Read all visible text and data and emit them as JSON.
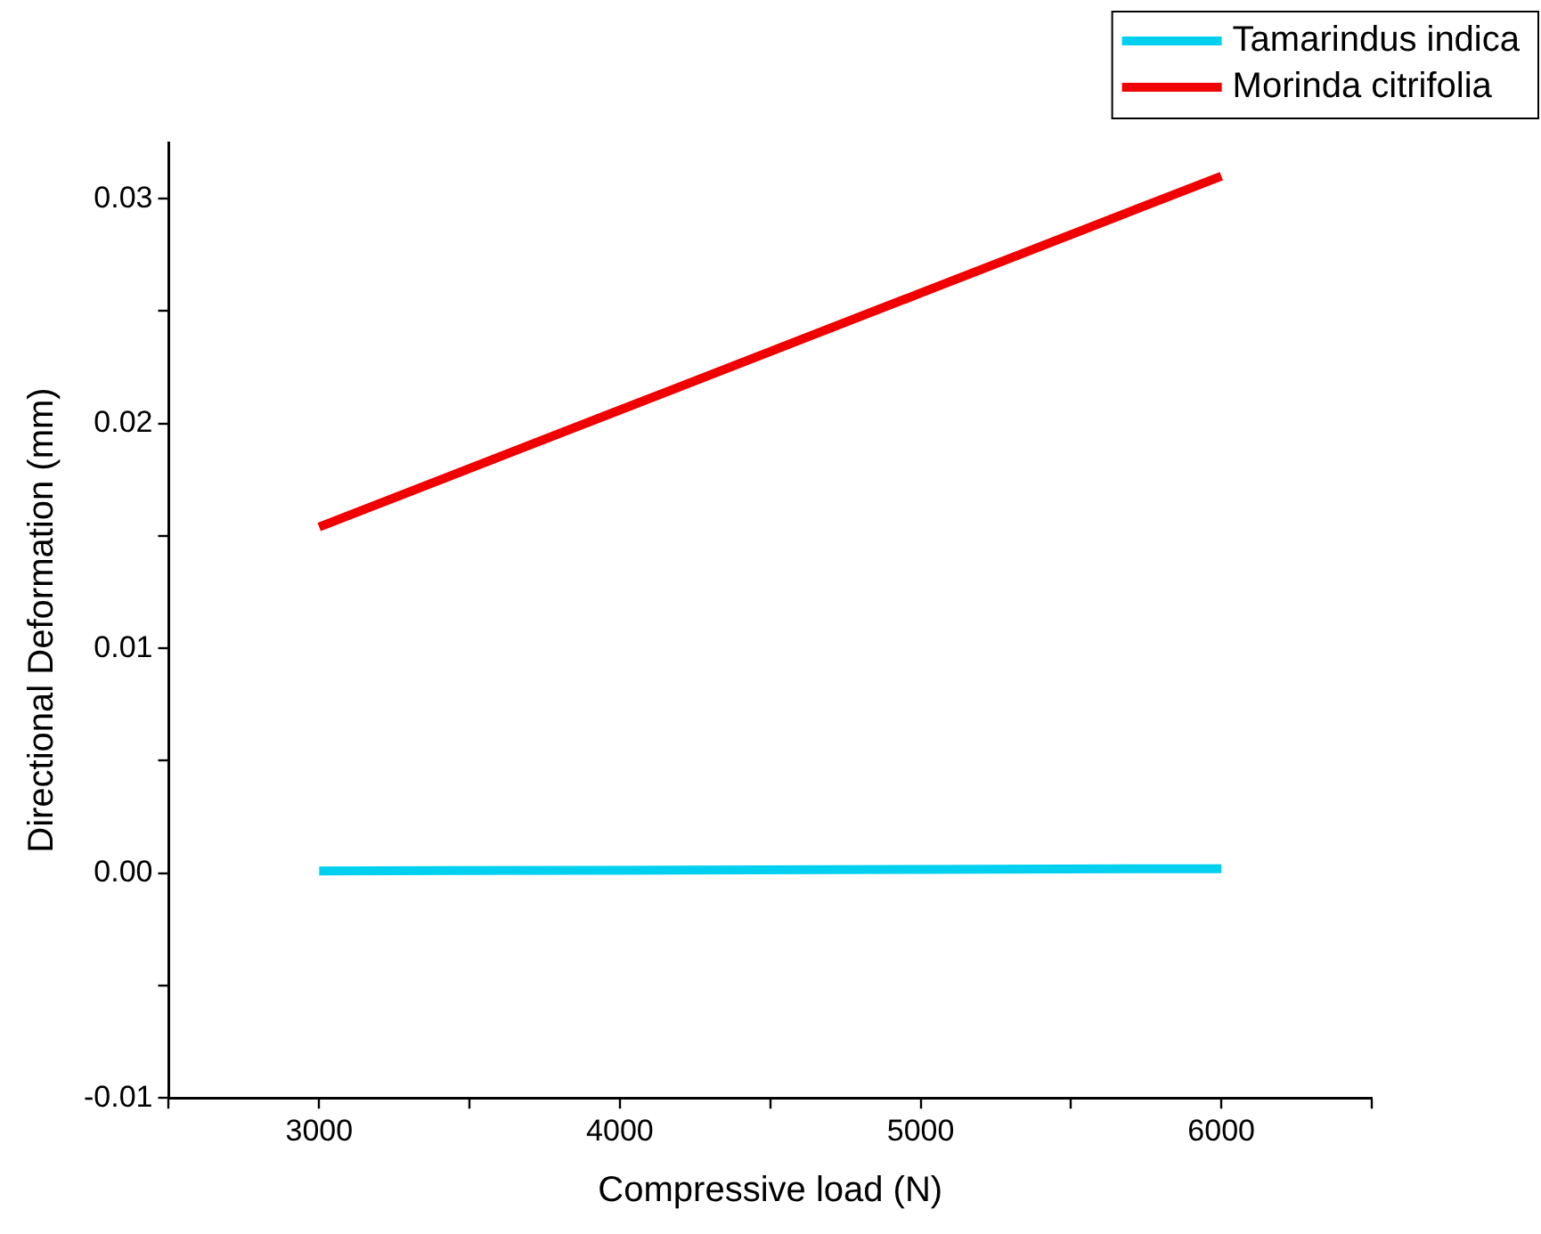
{
  "chart_data": {
    "type": "line",
    "xlabel": "Compressive load (N)",
    "ylabel": "Directional Deformation (mm)",
    "x": [
      3000,
      4000,
      5000,
      6000
    ],
    "series": [
      {
        "name": "Tamarindus indica",
        "color": "#00d0f0",
        "values": [
          0.0001,
          0.00013,
          0.00017,
          0.0002
        ]
      },
      {
        "name": "Morinda citrifolia",
        "color": "#f00000",
        "values": [
          0.0154,
          0.0206,
          0.0258,
          0.031
        ]
      }
    ],
    "xlim": [
      2500,
      6500
    ],
    "xticks": [
      {
        "value": 2500,
        "label": null
      },
      3000,
      {
        "value": 3500,
        "label": null
      },
      4000,
      {
        "value": 4500,
        "label": null
      },
      5000,
      {
        "value": 5500,
        "label": null
      },
      6000,
      {
        "value": 6500,
        "label": null
      }
    ],
    "ylim": [
      -0.01,
      0.0325
    ],
    "yticks": [
      -0.01,
      {
        "value": -0.005,
        "label": null
      },
      {
        "value": 0,
        "label": "0.00"
      },
      {
        "value": 0.005,
        "label": null
      },
      0.01,
      {
        "value": 0.015,
        "label": null
      },
      0.02,
      {
        "value": 0.025,
        "label": null
      },
      0.03
    ],
    "grid": false,
    "legend": "top right",
    "marker": "none",
    "line_style": "solid"
  }
}
